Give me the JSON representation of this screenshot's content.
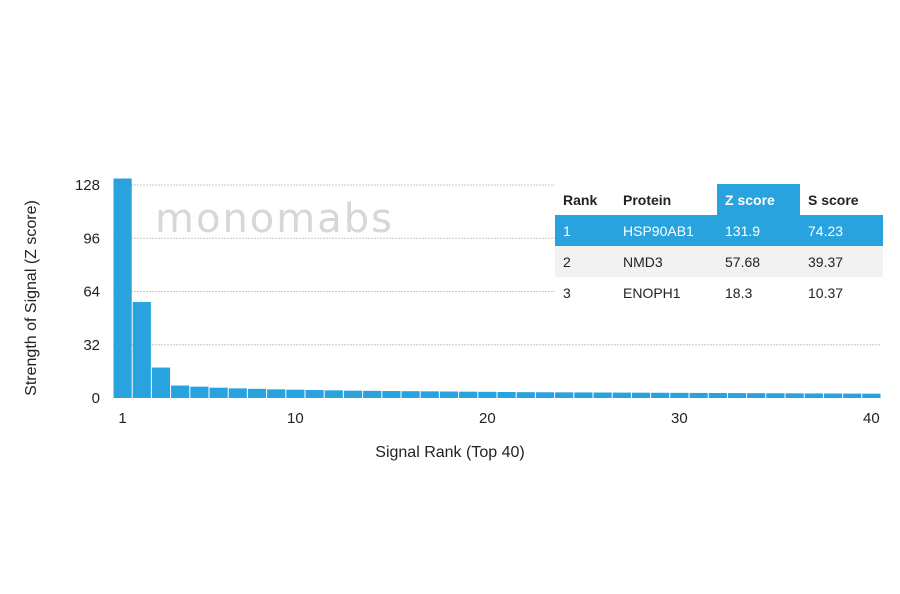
{
  "watermark": "monomabs",
  "chart_data": {
    "type": "bar",
    "xlabel": "Signal Rank (Top 40)",
    "ylabel": "Strength of Signal (Z score)",
    "ylim": [
      0,
      128
    ],
    "yticks": [
      0,
      32,
      64,
      96,
      128
    ],
    "xticks": [
      1,
      10,
      20,
      30,
      40
    ],
    "grid": true,
    "x": [
      1,
      2,
      3,
      4,
      5,
      6,
      7,
      8,
      9,
      10,
      11,
      12,
      13,
      14,
      15,
      16,
      17,
      18,
      19,
      20,
      21,
      22,
      23,
      24,
      25,
      26,
      27,
      28,
      29,
      30,
      31,
      32,
      33,
      34,
      35,
      36,
      37,
      38,
      39,
      40
    ],
    "values": [
      131.9,
      57.68,
      18.3,
      7.5,
      6.8,
      6.2,
      5.8,
      5.5,
      5.2,
      5.0,
      4.8,
      4.6,
      4.4,
      4.3,
      4.2,
      4.1,
      4.0,
      3.9,
      3.8,
      3.7,
      3.6,
      3.5,
      3.45,
      3.4,
      3.35,
      3.3,
      3.25,
      3.2,
      3.15,
      3.1,
      3.05,
      3.0,
      2.95,
      2.9,
      2.85,
      2.8,
      2.75,
      2.7,
      2.65,
      2.6
    ]
  },
  "table": {
    "headers": [
      "Rank",
      "Protein",
      "Z score",
      "S score"
    ],
    "rows": [
      [
        "1",
        "HSP90AB1",
        "131.9",
        "74.23"
      ],
      [
        "2",
        "NMD3",
        "57.68",
        "39.37"
      ],
      [
        "3",
        "ENOPH1",
        "18.3",
        "10.37"
      ]
    ]
  }
}
